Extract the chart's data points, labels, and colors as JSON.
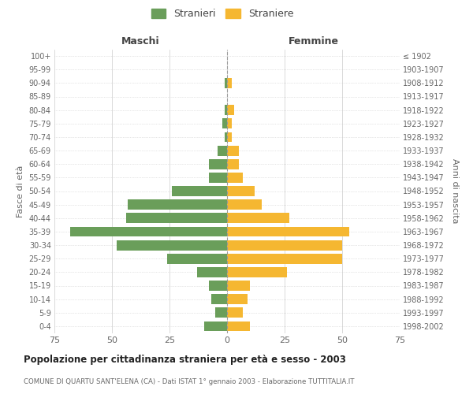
{
  "age_groups_bottom_to_top": [
    "0-4",
    "5-9",
    "10-14",
    "15-19",
    "20-24",
    "25-29",
    "30-34",
    "35-39",
    "40-44",
    "45-49",
    "50-54",
    "55-59",
    "60-64",
    "65-69",
    "70-74",
    "75-79",
    "80-84",
    "85-89",
    "90-94",
    "95-99",
    "100+"
  ],
  "birth_years_bottom_to_top": [
    "1998-2002",
    "1993-1997",
    "1988-1992",
    "1983-1987",
    "1978-1982",
    "1973-1977",
    "1968-1972",
    "1963-1967",
    "1958-1962",
    "1953-1957",
    "1948-1952",
    "1943-1947",
    "1938-1942",
    "1933-1937",
    "1928-1932",
    "1923-1927",
    "1918-1922",
    "1913-1917",
    "1908-1912",
    "1903-1907",
    "≤ 1902"
  ],
  "maschi_bottom_to_top": [
    10,
    5,
    7,
    8,
    13,
    26,
    48,
    68,
    44,
    43,
    24,
    8,
    8,
    4,
    1,
    2,
    1,
    0,
    1,
    0,
    0
  ],
  "femmine_bottom_to_top": [
    10,
    7,
    9,
    10,
    26,
    50,
    50,
    53,
    27,
    15,
    12,
    7,
    5,
    5,
    2,
    2,
    3,
    0,
    2,
    0,
    0
  ],
  "color_maschi": "#6a9e5a",
  "color_femmine": "#f5b731",
  "background_color": "#ffffff",
  "grid_color": "#cccccc",
  "title": "Popolazione per cittadinanza straniera per età e sesso - 2003",
  "subtitle": "COMUNE DI QUARTU SANT'ELENA (CA) - Dati ISTAT 1° gennaio 2003 - Elaborazione TUTTITALIA.IT",
  "ylabel_left": "Fasce di età",
  "ylabel_right": "Anni di nascita",
  "label_maschi": "Maschi",
  "label_femmine": "Femmine",
  "legend_stranieri": "Stranieri",
  "legend_straniere": "Straniere",
  "xlim": 75
}
